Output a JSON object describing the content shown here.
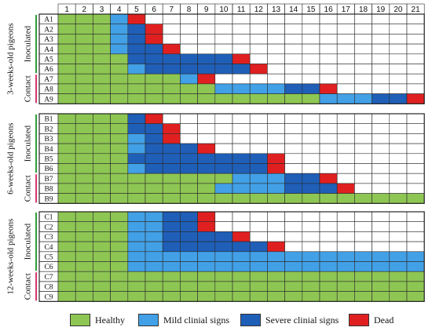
{
  "chart_data": {
    "type": "heatmap",
    "x_categories": [
      "1",
      "2",
      "3",
      "4",
      "5",
      "6",
      "7",
      "8",
      "9",
      "10",
      "11",
      "12",
      "13",
      "14",
      "15",
      "16",
      "17",
      "18",
      "19",
      "20",
      "21"
    ],
    "colors": {
      "healthy": "#8ec654",
      "mild": "#42a0e6",
      "severe": "#1f5fb8",
      "dead": "#e02020",
      "grid": "#2a2a2a",
      "inoculated_bar": "#2e9e3a",
      "contact_bar": "#d63a6a"
    },
    "codes": {
      "H": "healthy",
      "M": "mild",
      "S": "severe",
      "D": "dead",
      "_": "empty"
    },
    "groups": [
      {
        "label": "3-weeks-old pigeons",
        "subgroups": [
          {
            "label": "Inoculated",
            "rows": [
              {
                "id": "A1",
                "cells": "HHHMD________________"
              },
              {
                "id": "A2",
                "cells": "HHHMSD_______________"
              },
              {
                "id": "A3",
                "cells": "HHHMSD_______________"
              },
              {
                "id": "A4",
                "cells": "HHHMSSD______________"
              },
              {
                "id": "A5",
                "cells": "HHHHSSSSSSD__________"
              },
              {
                "id": "A6",
                "cells": "HHHHMSSSSSSD_________"
              }
            ]
          },
          {
            "label": "Contact",
            "rows": [
              {
                "id": "A7",
                "cells": "HHHHHHHMD____________"
              },
              {
                "id": "A8",
                "cells": "HHHHHHHHHMMMMSSD_____"
              },
              {
                "id": "A9",
                "cells": "HHHHHHHHHHHHHHHMMMSSD"
              }
            ]
          }
        ]
      },
      {
        "label": "6-weeks-old pigeons",
        "subgroups": [
          {
            "label": "Inoculated",
            "rows": [
              {
                "id": "B1",
                "cells": "HHHHSD_______________"
              },
              {
                "id": "B2",
                "cells": "HHHHSSD______________"
              },
              {
                "id": "B3",
                "cells": "HHHHMSD______________"
              },
              {
                "id": "B4",
                "cells": "HHHHMSSSD____________"
              },
              {
                "id": "B5",
                "cells": "HHHHSSSSSSSSD________"
              },
              {
                "id": "B6",
                "cells": "HHHHMSSSSSSSD________"
              }
            ]
          },
          {
            "label": "Contact",
            "rows": [
              {
                "id": "B7",
                "cells": "HHHHHHHHHHMMMSSD_____"
              },
              {
                "id": "B8",
                "cells": "HHHHHHHHHMMMMSSSD____"
              },
              {
                "id": "B9",
                "cells": "HHHHHHHHHHHHHHHHHHHHH"
              }
            ]
          }
        ]
      },
      {
        "label": "12-weeks-old pigeons",
        "subgroups": [
          {
            "label": "Inoculated",
            "rows": [
              {
                "id": "C1",
                "cells": "HHHHMMSSD____________"
              },
              {
                "id": "C2",
                "cells": "HHHHMMSSD____________"
              },
              {
                "id": "C3",
                "cells": "HHHHMMSSSSD__________"
              },
              {
                "id": "C4",
                "cells": "HHHHMMSSSSSSD________"
              },
              {
                "id": "C5",
                "cells": "HHHHMMMMMMMMMMMMMMMMM"
              },
              {
                "id": "C6",
                "cells": "HHHHMMMMMMMMMMMMMMMMM"
              }
            ]
          },
          {
            "label": "Contact",
            "rows": [
              {
                "id": "C7",
                "cells": "HHHHHHHHHHHHHHHHHHHHH"
              },
              {
                "id": "C8",
                "cells": "HHHHHHHHHHHHHHHHHHHHH"
              },
              {
                "id": "C9",
                "cells": "HHHHHHHHHHHHHHHHHHHHH"
              }
            ]
          }
        ]
      }
    ],
    "legend": [
      {
        "key": "healthy",
        "label": "Healthy"
      },
      {
        "key": "mild",
        "label": "Mild clinial signs"
      },
      {
        "key": "severe",
        "label": "Severe clinial signs"
      },
      {
        "key": "dead",
        "label": "Dead"
      }
    ]
  }
}
